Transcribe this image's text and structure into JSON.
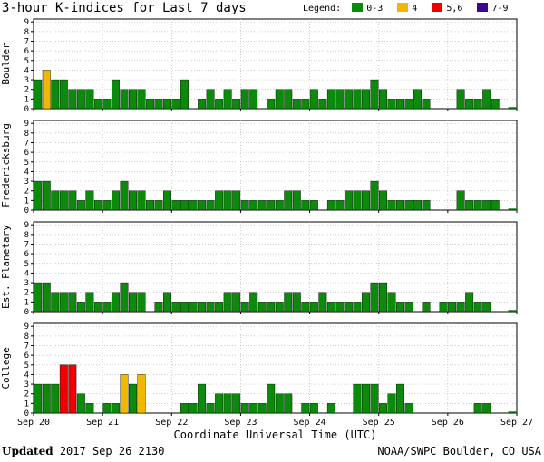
{
  "title": "3-hour K-indices for Last 7 days",
  "legend": {
    "label": "Legend:",
    "items": [
      {
        "label": "0-3",
        "color": "#0b8a0b"
      },
      {
        "label": "4",
        "color": "#f0b800"
      },
      {
        "label": "5,6",
        "color": "#ee0000"
      },
      {
        "label": "7-9",
        "color": "#3c0a8c"
      }
    ]
  },
  "footer": {
    "updated_label": "Updated",
    "updated_value": "2017 Sep 26 2130",
    "source": "NOAA/SWPC Boulder, CO USA"
  },
  "chart_data": {
    "type": "bar",
    "xlabel": "Coordinate Universal Time (UTC)",
    "x_ticks": [
      "Sep 20",
      "Sep 21",
      "Sep 22",
      "Sep 23",
      "Sep 24",
      "Sep 25",
      "Sep 26",
      "Sep 27"
    ],
    "y_ticks": [
      "0",
      "1",
      "2",
      "3",
      "4",
      "5",
      "6",
      "7",
      "8",
      "9"
    ],
    "ylim": [
      0,
      9
    ],
    "panels": [
      {
        "ylabel": "Boulder",
        "values": [
          3,
          4,
          3,
          3,
          2,
          2,
          2,
          1,
          1,
          3,
          2,
          2,
          2,
          1,
          1,
          1,
          1,
          3,
          0,
          1,
          2,
          1,
          2,
          1,
          2,
          2,
          0,
          1,
          2,
          2,
          1,
          1,
          2,
          1,
          2,
          2,
          2,
          2,
          2,
          3,
          2,
          1,
          1,
          1,
          2,
          1,
          0,
          0,
          0,
          2,
          1,
          1,
          2,
          1,
          0
        ]
      },
      {
        "ylabel": "Fredericksburg",
        "values": [
          3,
          3,
          2,
          2,
          2,
          1,
          2,
          1,
          1,
          2,
          3,
          2,
          2,
          1,
          1,
          2,
          1,
          1,
          1,
          1,
          1,
          2,
          2,
          2,
          1,
          1,
          1,
          1,
          1,
          2,
          2,
          1,
          1,
          0,
          1,
          1,
          2,
          2,
          2,
          3,
          2,
          1,
          1,
          1,
          1,
          1,
          0,
          0,
          0,
          2,
          1,
          1,
          1,
          1,
          0
        ]
      },
      {
        "ylabel": "Est. Planetary",
        "values": [
          3,
          3,
          2,
          2,
          2,
          1,
          2,
          1,
          1,
          2,
          3,
          2,
          2,
          0,
          1,
          2,
          1,
          1,
          1,
          1,
          1,
          1,
          2,
          2,
          1,
          2,
          1,
          1,
          1,
          2,
          2,
          1,
          1,
          2,
          1,
          1,
          1,
          1,
          2,
          3,
          3,
          2,
          1,
          1,
          0,
          1,
          0,
          1,
          1,
          1,
          2,
          1,
          1,
          0,
          0
        ]
      },
      {
        "ylabel": "College",
        "values": [
          3,
          3,
          3,
          5,
          5,
          2,
          1,
          0,
          1,
          1,
          4,
          3,
          4,
          0,
          0,
          0,
          0,
          1,
          1,
          3,
          1,
          2,
          2,
          2,
          1,
          1,
          1,
          3,
          2,
          2,
          0,
          1,
          1,
          0,
          1,
          0,
          0,
          3,
          3,
          3,
          1,
          2,
          3,
          1,
          0,
          0,
          0,
          0,
          0,
          0,
          0,
          1,
          1,
          0,
          0
        ]
      }
    ]
  }
}
